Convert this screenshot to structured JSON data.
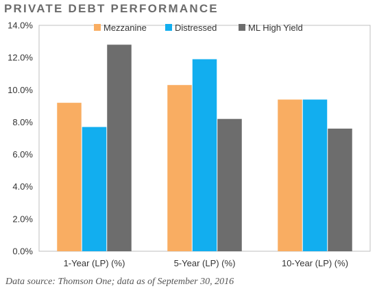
{
  "chart_data": {
    "type": "bar",
    "title": "PRIVATE DEBT PERFORMANCE",
    "categories": [
      "1-Year (LP) (%)",
      "5-Year (LP) (%)",
      "10-Year (LP) (%)"
    ],
    "series": [
      {
        "name": "Mezzanine",
        "color": "#f9ad62",
        "values": [
          9.2,
          10.3,
          9.4
        ]
      },
      {
        "name": "Distressed",
        "color": "#12aeef",
        "values": [
          7.7,
          11.9,
          9.4
        ]
      },
      {
        "name": "ML High Yield",
        "color": "#6d6d6d",
        "values": [
          12.8,
          8.2,
          7.6
        ]
      }
    ],
    "y_ticks": [
      "0.0%",
      "2.0%",
      "4.0%",
      "6.0%",
      "8.0%",
      "10.0%",
      "12.0%",
      "14.0%"
    ],
    "ylim": [
      0,
      14
    ],
    "legend_position": "top",
    "grid": false,
    "source": "Data source: Thomson One; data as of September 30, 2016"
  }
}
